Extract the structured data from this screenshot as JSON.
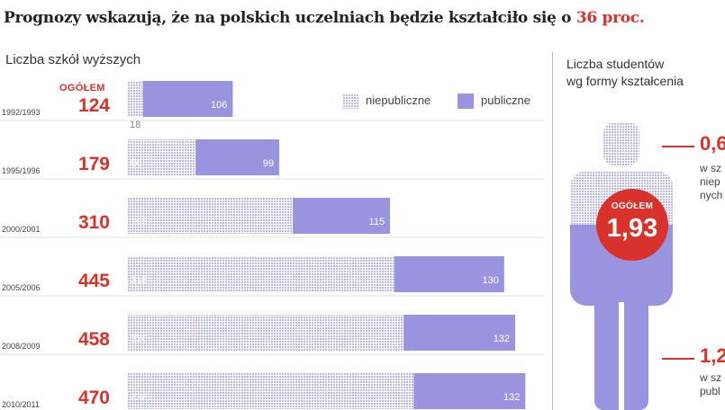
{
  "headline": {
    "text": "Prognozy wskazują, że na polskich uczelniach będzie kształciło się o ",
    "accent": "36 proc."
  },
  "colors": {
    "accent": "#d9322b",
    "publiczne": "#9a94e0",
    "niepubliczne": "#b9b9e8"
  },
  "chart_data": {
    "type": "bar",
    "stacked": true,
    "orientation": "horizontal",
    "title": "Liczba szkół wyższych",
    "total_label": "OGÓŁEM",
    "categories": [
      "1992/1993",
      "1995/1996",
      "2000/2001",
      "2005/2006",
      "2008/2009",
      "2010/2011"
    ],
    "totals": [
      124,
      179,
      310,
      445,
      458,
      470
    ],
    "series": [
      {
        "name": "niepubliczne",
        "values": [
          18,
          80,
          195,
          315,
          326,
          338
        ],
        "color": "#b9b9e8",
        "pattern": "grid"
      },
      {
        "name": "publiczne",
        "values": [
          106,
          99,
          115,
          130,
          132,
          132
        ],
        "color": "#9a94e0"
      }
    ],
    "legend": "top-right",
    "grid": false
  },
  "students": {
    "title_line1": "Liczba studentów",
    "title_line2": "wg formy kształcenia",
    "total_label": "OGÓŁEM",
    "total_value": "1,93",
    "niepubliczne": {
      "value": "0,6",
      "desc_lines": [
        "w sz",
        "niep",
        "nych"
      ]
    },
    "publiczne": {
      "value": "1,2",
      "desc_lines": [
        "w sz",
        "publ"
      ]
    }
  }
}
